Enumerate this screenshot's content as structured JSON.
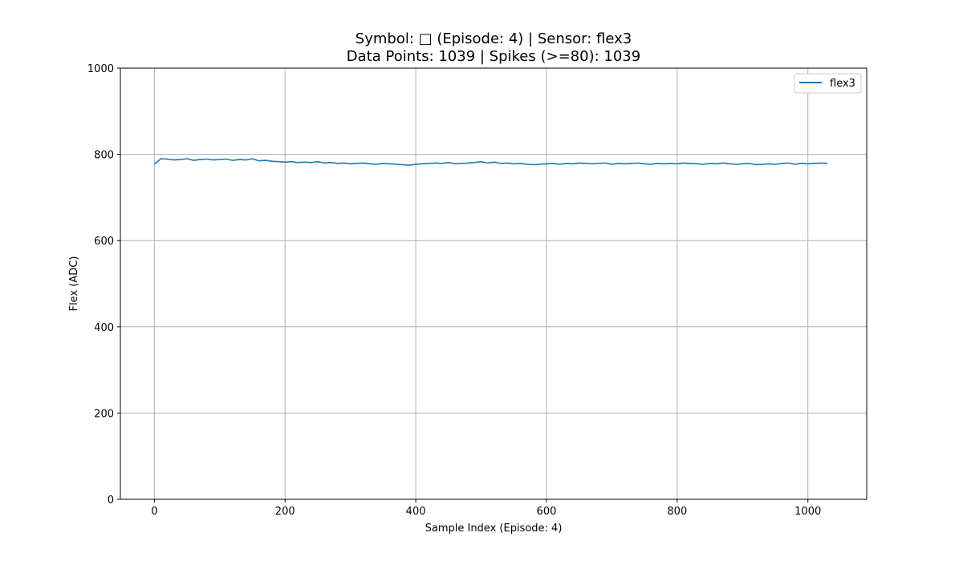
{
  "chart_data": {
    "type": "line",
    "title_line1": "Symbol: □ (Episode: 4) | Sensor: flex3",
    "title_line2": "Data Points: 1039 | Spikes (>=80): 1039",
    "xlabel": "Sample Index (Episode: 4)",
    "ylabel": "Flex (ADC)",
    "xlim": [
      -52,
      1090
    ],
    "ylim": [
      0,
      1000
    ],
    "x_ticks": [
      0,
      200,
      400,
      600,
      800,
      1000
    ],
    "y_ticks": [
      0,
      200,
      400,
      600,
      800,
      1000
    ],
    "grid": true,
    "legend_position": "top-right",
    "series": [
      {
        "name": "flex3",
        "color": "#1f77b4",
        "x_start": 0,
        "x_step": 10,
        "values": [
          777,
          790,
          789,
          787,
          788,
          790,
          786,
          788,
          789,
          787,
          788,
          789,
          786,
          788,
          787,
          790,
          785,
          786,
          784,
          783,
          782,
          783,
          781,
          782,
          781,
          783,
          780,
          781,
          779,
          780,
          778,
          779,
          780,
          778,
          777,
          779,
          778,
          777,
          776,
          775,
          777,
          778,
          779,
          780,
          779,
          781,
          778,
          779,
          780,
          781,
          783,
          780,
          782,
          779,
          780,
          778,
          779,
          777,
          776,
          777,
          778,
          779,
          777,
          779,
          778,
          780,
          779,
          778,
          779,
          780,
          777,
          779,
          778,
          779,
          780,
          778,
          777,
          779,
          778,
          779,
          778,
          780,
          779,
          778,
          777,
          779,
          778,
          780,
          778,
          777,
          778,
          779,
          776,
          777,
          778,
          777,
          779,
          780,
          777,
          779,
          778,
          779,
          780,
          779
        ]
      }
    ]
  }
}
